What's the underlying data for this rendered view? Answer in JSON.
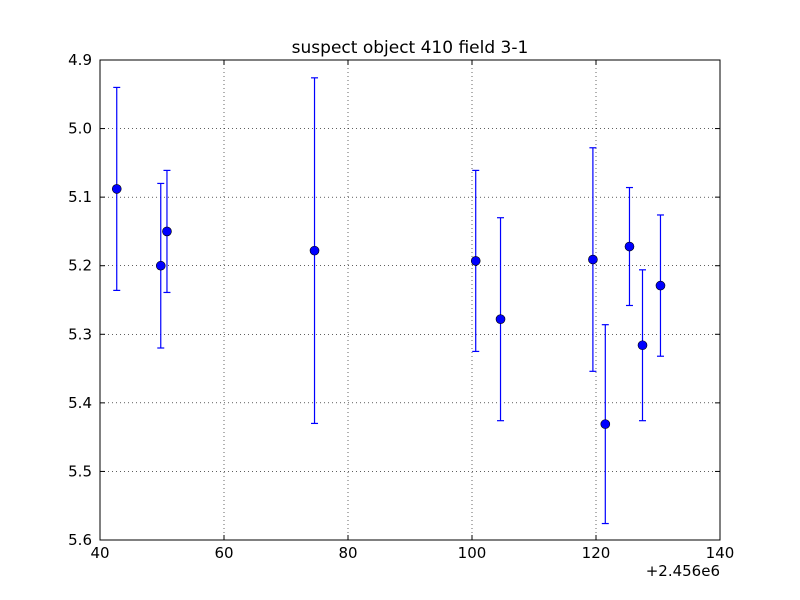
{
  "chart_data": {
    "type": "scatter",
    "title": "suspect object 410 field 3-1",
    "xlabel": "",
    "ylabel": "",
    "x_offset_label": "+2.456e6",
    "xlim": [
      40,
      140
    ],
    "ylim": [
      4.9,
      5.6
    ],
    "y_inverted": true,
    "x_ticks": [
      40,
      60,
      80,
      100,
      120,
      140
    ],
    "x_tick_labels": [
      "40",
      "60",
      "80",
      "100",
      "120",
      "140"
    ],
    "y_ticks": [
      4.9,
      5.0,
      5.1,
      5.2,
      5.3,
      5.4,
      5.5,
      5.6
    ],
    "y_tick_labels": [
      "4.9",
      "5.0",
      "5.1",
      "5.2",
      "5.3",
      "5.4",
      "5.5",
      "5.6"
    ],
    "grid": true,
    "series": [
      {
        "color": "#0000ff",
        "marker": "circle",
        "points": [
          {
            "x": 42.7,
            "y": 5.088,
            "yerr": 0.148
          },
          {
            "x": 49.8,
            "y": 5.2,
            "yerr": 0.12
          },
          {
            "x": 50.8,
            "y": 5.15,
            "yerr": 0.089
          },
          {
            "x": 74.6,
            "y": 5.178,
            "yerr": 0.252
          },
          {
            "x": 100.6,
            "y": 5.193,
            "yerr": 0.132
          },
          {
            "x": 104.6,
            "y": 5.278,
            "yerr": 0.148
          },
          {
            "x": 119.5,
            "y": 5.191,
            "yerr": 0.163
          },
          {
            "x": 121.5,
            "y": 5.431,
            "yerr": 0.145
          },
          {
            "x": 125.4,
            "y": 5.172,
            "yerr": 0.086
          },
          {
            "x": 127.5,
            "y": 5.316,
            "yerr": 0.11
          },
          {
            "x": 130.4,
            "y": 5.229,
            "yerr": 0.103
          }
        ]
      }
    ]
  }
}
